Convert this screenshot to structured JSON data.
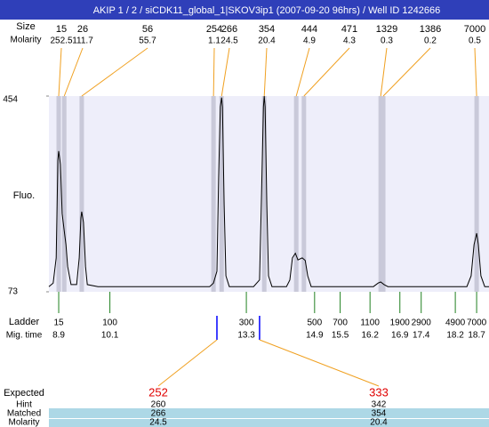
{
  "header": {
    "title": "AKIP 1 / 2 / siCDK11_global_1|SKOV3ip1 (2007-09-20 96hrs) / Well ID 1242666"
  },
  "chart_data": {
    "type": "electropherogram",
    "y_label": "Fluo.",
    "xlim": [
      8.67,
      18.99
    ],
    "ylim": [
      73,
      454
    ],
    "yticks": [
      73,
      454
    ],
    "trace": {
      "color": "#000000",
      "x": [
        8.67,
        8.77,
        8.84,
        8.88,
        8.9,
        8.94,
        8.98,
        9.03,
        9.07,
        9.11,
        9.19,
        9.32,
        9.38,
        9.42,
        9.44,
        9.48,
        9.53,
        9.57,
        9.82,
        11.69,
        12.44,
        12.53,
        12.61,
        12.65,
        12.69,
        12.72,
        12.74,
        12.78,
        12.82,
        12.9,
        13.47,
        13.61,
        13.65,
        13.7,
        13.72,
        13.74,
        13.78,
        13.82,
        13.9,
        14.24,
        14.32,
        14.38,
        14.45,
        14.51,
        14.61,
        14.68,
        14.74,
        14.82,
        16.28,
        16.39,
        16.45,
        16.53,
        16.62,
        18.47,
        18.57,
        18.64,
        18.7,
        18.74,
        18.8,
        18.89,
        18.99
      ],
      "values": [
        83,
        90,
        139,
        329,
        347,
        321,
        225,
        191,
        165,
        122,
        87,
        87,
        139,
        217,
        229,
        208,
        122,
        87,
        83,
        83,
        83,
        90,
        113,
        295,
        433,
        451,
        433,
        243,
        104,
        83,
        83,
        96,
        243,
        433,
        454,
        433,
        243,
        104,
        83,
        83,
        96,
        139,
        148,
        135,
        139,
        134,
        104,
        83,
        83,
        90,
        92,
        87,
        83,
        83,
        104,
        165,
        187,
        165,
        104,
        83,
        83
      ]
    },
    "peaks": {
      "size_label": "Size",
      "molarity_label": "Molarity",
      "sizes": [
        15,
        26,
        56,
        254,
        266,
        354,
        444,
        471,
        1329,
        1386,
        7000
      ],
      "molarities": [
        252.5,
        111.7,
        55.7,
        1.1,
        24.5,
        20.4,
        4.9,
        4.3,
        0.3,
        0.2,
        0.5
      ],
      "times": [
        8.9,
        9.03,
        9.44,
        12.53,
        12.72,
        13.72,
        14.47,
        14.65,
        16.45,
        16.51,
        18.7
      ],
      "band_color": "#c9c9d9",
      "line_color": "#f0a020"
    },
    "ladder": {
      "label": "Ladder",
      "time_label": "Mig. time",
      "sizes": [
        15,
        100,
        300,
        500,
        700,
        1100,
        1900,
        2900,
        4900,
        7000
      ],
      "times": [
        8.9,
        10.1,
        13.3,
        14.9,
        15.5,
        16.2,
        16.9,
        17.4,
        18.2,
        18.7
      ],
      "color": "#208020"
    },
    "expected": {
      "label": "Expected",
      "hint_label": "Hint",
      "matched_label": "Matched",
      "molarity_label": "Molarity",
      "values": [
        252,
        333
      ],
      "hints": [
        260,
        342
      ],
      "matched": [
        266,
        354
      ],
      "molarities": [
        24.5,
        20.4
      ],
      "times": [
        12.61,
        13.61
      ],
      "color": "#0000ff"
    }
  }
}
